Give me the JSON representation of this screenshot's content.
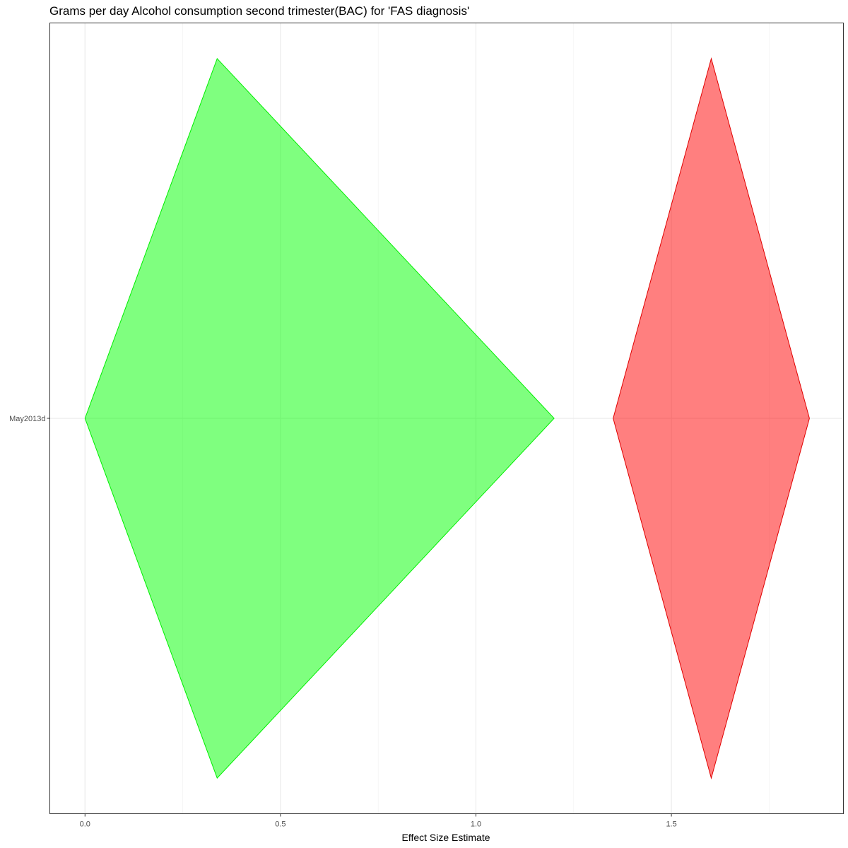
{
  "chart_data": {
    "type": "diamond",
    "title": "Grams per day Alcohol consumption second trimester(BAC) for 'FAS diagnosis'",
    "xlabel": "Effect Size Estimate",
    "ylabel": "",
    "xlim": [
      -0.09,
      1.94
    ],
    "x_ticks": [
      0.0,
      0.5,
      1.0,
      1.5
    ],
    "x_tick_labels": [
      "0.0",
      "0.5",
      "1.0",
      "1.5"
    ],
    "y_categories": [
      "May2013d"
    ],
    "grid": true,
    "legend": "none",
    "series": [
      {
        "lower": 0.0,
        "estimate": 0.338,
        "upper": 1.2,
        "fill": "#00ff00",
        "stroke": "#00ee00",
        "opacity": 0.5
      },
      {
        "lower": 1.351,
        "estimate": 1.602,
        "upper": 1.853,
        "fill": "#ff0000",
        "stroke": "#e00000",
        "opacity": 0.5
      }
    ]
  }
}
